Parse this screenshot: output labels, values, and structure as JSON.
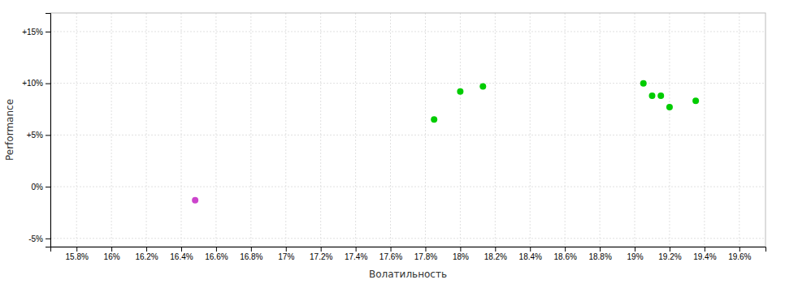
{
  "chart_data": {
    "type": "scatter",
    "x_label": "Волатильность",
    "y_label": "Performance",
    "xlim": [
      0.1565,
      0.1975
    ],
    "ylim": [
      -0.058,
      0.168
    ],
    "xticks": [
      {
        "value": 0.158,
        "label": "15.8%"
      },
      {
        "value": 0.16,
        "label": "16%"
      },
      {
        "value": 0.162,
        "label": "16.2%"
      },
      {
        "value": 0.164,
        "label": "16.4%"
      },
      {
        "value": 0.166,
        "label": "16.6%"
      },
      {
        "value": 0.168,
        "label": "16.8%"
      },
      {
        "value": 0.17,
        "label": "17%"
      },
      {
        "value": 0.172,
        "label": "17.2%"
      },
      {
        "value": 0.174,
        "label": "17.4%"
      },
      {
        "value": 0.176,
        "label": "17.6%"
      },
      {
        "value": 0.178,
        "label": "17.8%"
      },
      {
        "value": 0.18,
        "label": "18%"
      },
      {
        "value": 0.182,
        "label": "18.2%"
      },
      {
        "value": 0.184,
        "label": "18.4%"
      },
      {
        "value": 0.186,
        "label": "18.6%"
      },
      {
        "value": 0.188,
        "label": "18.8%"
      },
      {
        "value": 0.19,
        "label": "19%"
      },
      {
        "value": 0.192,
        "label": "19.2%"
      },
      {
        "value": 0.194,
        "label": "19.4%"
      },
      {
        "value": 0.196,
        "label": "19.6%"
      }
    ],
    "yticks": [
      {
        "value": -0.05,
        "label": "-5%"
      },
      {
        "value": 0.0,
        "label": "0%"
      },
      {
        "value": 0.05,
        "label": "+5%"
      },
      {
        "value": 0.1,
        "label": "+10%"
      },
      {
        "value": 0.15,
        "label": "+15%"
      }
    ],
    "grid": true,
    "series": [
      {
        "color": "#cc44cc",
        "x": [
          0.1648
        ],
        "values": [
          -0.013
        ]
      },
      {
        "color": "#00cc00",
        "x": [
          0.1785,
          0.18,
          0.1813,
          0.1905,
          0.191,
          0.1915,
          0.192,
          0.1935
        ],
        "values": [
          0.065,
          0.092,
          0.097,
          0.1,
          0.088,
          0.088,
          0.077,
          0.083
        ]
      }
    ]
  }
}
